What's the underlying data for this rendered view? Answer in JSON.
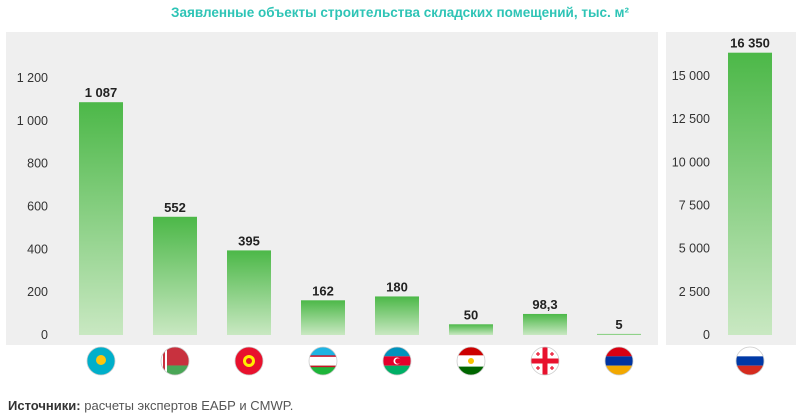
{
  "title": "Заявленные объекты строительства складских помещений, тыс. м²",
  "source": {
    "label": "Источники:",
    "text": "расчеты экспертов ЕАБР и CMWP."
  },
  "colors": {
    "bar_top": "#4cb848",
    "bar_bottom": "#c9e8c2",
    "title": "#2ec4b6",
    "panel": "#efefef"
  },
  "chart_data": [
    {
      "type": "bar",
      "categories": [
        "kazakhstan-flag",
        "belarus-flag",
        "kyrgyzstan-flag",
        "uzbekistan-flag",
        "azerbaijan-flag",
        "tajikistan-flag",
        "georgia-flag",
        "armenia-flag"
      ],
      "values": [
        1087,
        552,
        395,
        162,
        180,
        50,
        98.3,
        5
      ],
      "value_labels": [
        "1 087",
        "552",
        "395",
        "162",
        "180",
        "50",
        "98,3",
        "5"
      ],
      "ylim": [
        0,
        1200
      ],
      "yticks": [
        0,
        200,
        400,
        600,
        800,
        1000,
        1200
      ],
      "ytick_labels": [
        "0",
        "200",
        "400",
        "600",
        "800",
        "1 000",
        "1 200"
      ],
      "axis_side": "left",
      "grid": false
    },
    {
      "type": "bar",
      "categories": [
        "russia-flag"
      ],
      "values": [
        16350
      ],
      "value_labels": [
        "16 350"
      ],
      "ylim": [
        0,
        15000
      ],
      "yticks": [
        0,
        2500,
        5000,
        7500,
        10000,
        12500,
        15000
      ],
      "ytick_labels": [
        "0",
        "2 500",
        "5 000",
        "7 500",
        "10 000",
        "12 500",
        "15 000"
      ],
      "axis_side": "right",
      "grid": false
    }
  ]
}
